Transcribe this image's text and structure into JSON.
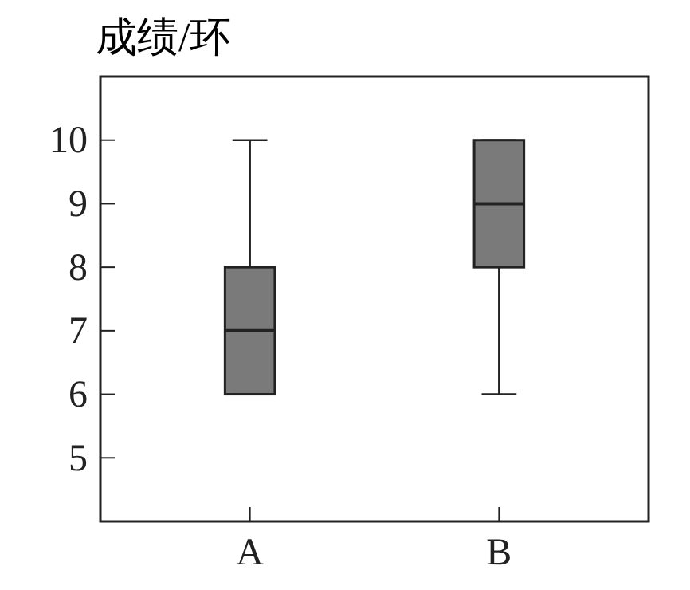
{
  "chart_data": {
    "type": "box",
    "ylabel": "成绩/环",
    "categories": [
      "A",
      "B"
    ],
    "boxes": [
      {
        "low": 6,
        "q1": 6,
        "median": 7,
        "q3": 8,
        "high": 10
      },
      {
        "low": 6,
        "q1": 8,
        "median": 9,
        "q3": 10,
        "high": 10
      }
    ],
    "color": "#7a7a7a",
    "ylim": [
      4,
      11
    ],
    "yticks": [
      5,
      6,
      7,
      8,
      9,
      10
    ],
    "grid": false
  }
}
